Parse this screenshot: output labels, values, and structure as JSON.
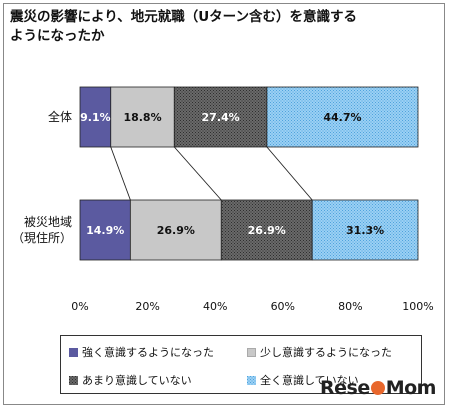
{
  "title": "震災の影響により、地元就職（Uターン含む）を意識するようになったか",
  "chart_data": {
    "type": "bar",
    "orientation": "horizontal-stacked-100",
    "categories": [
      "全体",
      "被災地域（現住所）"
    ],
    "series": [
      {
        "name": "強く意識するようになった",
        "values": [
          9.1,
          14.9
        ],
        "labels": [
          "9.1%",
          "14.9%"
        ]
      },
      {
        "name": "少し意識するようになった",
        "values": [
          18.8,
          26.9
        ],
        "labels": [
          "18.8%",
          "26.9%"
        ]
      },
      {
        "name": "あまり意識していない",
        "values": [
          27.4,
          26.9
        ],
        "labels": [
          "27.4%",
          "26.9%"
        ]
      },
      {
        "name": "全く意識していない",
        "values": [
          44.7,
          31.3
        ],
        "labels": [
          "44.7%",
          "31.3%"
        ]
      }
    ],
    "xlim": [
      0,
      100
    ],
    "xticks": [
      "0%",
      "20%",
      "40%",
      "60%",
      "80%",
      "100%"
    ],
    "grid": false,
    "legend_position": "bottom",
    "colors": [
      "#5b5aa0",
      "#c8c8c8",
      "#555555",
      "#7fc0ee"
    ]
  },
  "legend": [
    {
      "label": "強く意識するようになった",
      "color": "#5b5aa0"
    },
    {
      "label": "少し意識するようになった",
      "color": "#c8c8c8"
    },
    {
      "label": "あまり意識していない",
      "color": "#555555"
    },
    {
      "label": "全く意識していない",
      "color": "#7fc0ee"
    }
  ],
  "category_labels": [
    [
      "全体"
    ],
    [
      "被災地域",
      "（現住所）"
    ]
  ],
  "watermark": "ReseMom"
}
